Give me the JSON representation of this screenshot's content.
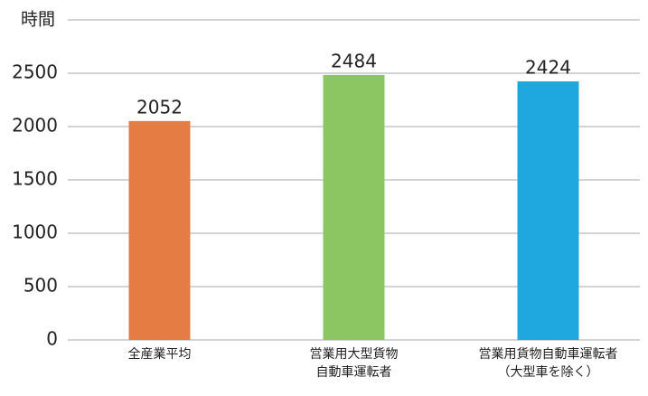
{
  "chart_data": {
    "type": "bar",
    "ylabel": "時間",
    "categories": [
      "全産業平均",
      "営業用大型貨物\n自動車運転者",
      "営業用貨物自動車運転者\n（大型車を除く）"
    ],
    "values": [
      2052,
      2484,
      2424
    ],
    "colors": [
      "#e57c43",
      "#8bc663",
      "#1fa8df"
    ],
    "ylim": [
      0,
      3000
    ],
    "yticks": [
      0,
      500,
      1000,
      1500,
      2000,
      2500
    ],
    "grid": true
  }
}
